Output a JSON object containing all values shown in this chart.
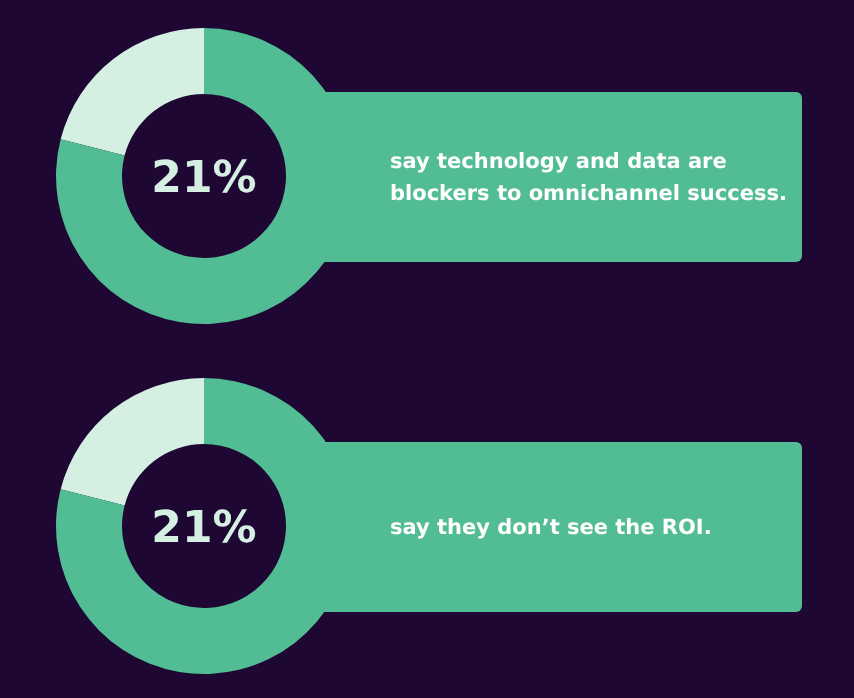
{
  "chart_data": [
    {
      "type": "donut",
      "title": "21%",
      "categories": [
        null,
        null
      ],
      "values": [
        21,
        79
      ],
      "colors": [
        "#d5efe3",
        "#52bd94"
      ],
      "annotations": [
        "say technology and data are blockers to omnichannel success."
      ]
    },
    {
      "type": "donut",
      "title": "21%",
      "categories": [
        null,
        null
      ],
      "values": [
        21,
        79
      ],
      "colors": [
        "#d5efe3",
        "#52bd94"
      ],
      "annotations": [
        "say they don’t see the ROI."
      ]
    }
  ]
}
